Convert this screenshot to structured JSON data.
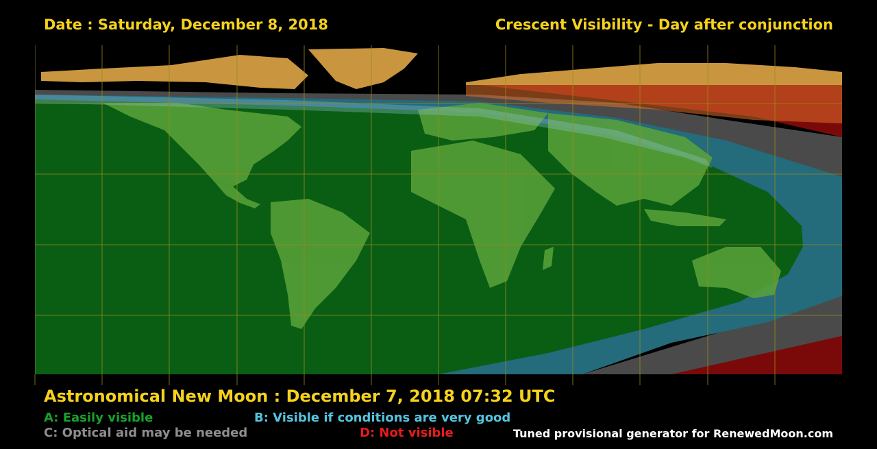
{
  "header": {
    "date": "Date : Saturday, December 8, 2018",
    "title": "Crescent Visibility - Day after conjunction"
  },
  "footer": {
    "new_moon": "Astronomical New Moon : December 7, 2018 07:32 UTC",
    "credit": "Tuned provisional generator for RenewedMoon.com"
  },
  "legend": [
    {
      "label": "A: Easily visible",
      "color": "#0a5e14"
    },
    {
      "label": "B: Visible if conditions are very good",
      "color": "#246b7c"
    },
    {
      "label": "C: Optical aid may be needed",
      "color": "#4a4a4a"
    },
    {
      "label": "D: Not visible",
      "color": "#7a0a0a"
    }
  ],
  "colors": {
    "zone_a": "#0a5e14",
    "zone_b": "#246b7c",
    "zone_c": "#4a4a4a",
    "zone_d": "#7a0a0a",
    "land": "#c9963f",
    "grid": "#9a8a1a",
    "text_accent": "#f5d21c"
  }
}
